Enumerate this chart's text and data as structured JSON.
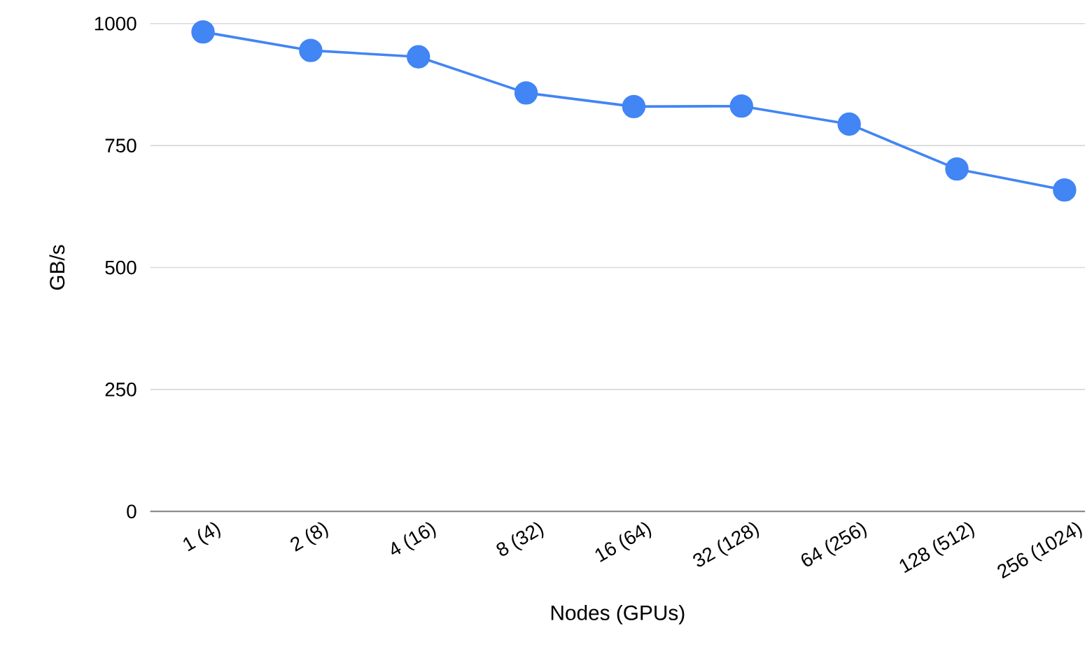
{
  "chart_data": {
    "type": "line",
    "xlabel": "Nodes (GPUs)",
    "ylabel": "GB/s",
    "categories": [
      "1 (4)",
      "2 (8)",
      "4 (16)",
      "8 (32)",
      "16 (64)",
      "32 (128)",
      "64 (256)",
      "128 (512)",
      "256 (1024)"
    ],
    "values": [
      983,
      945,
      932,
      858,
      830,
      831,
      794,
      702,
      659
    ],
    "color": "#4285f4",
    "marker": "circle",
    "line_style": "solid",
    "ylim": [
      0,
      1000
    ],
    "yticks": [
      0,
      250,
      500,
      750,
      1000
    ],
    "grid": "y"
  }
}
